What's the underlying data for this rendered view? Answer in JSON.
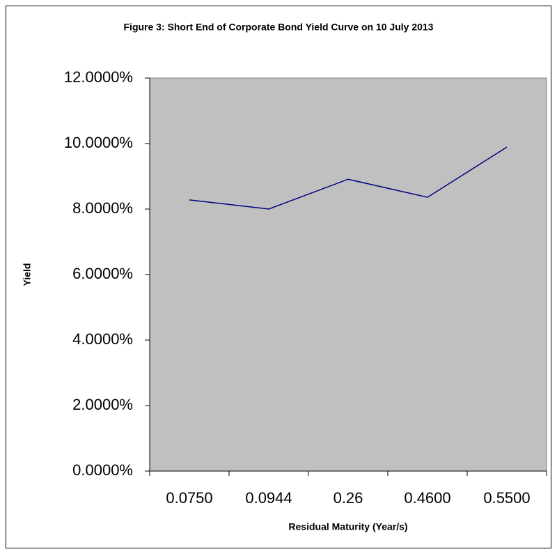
{
  "chart_data": {
    "type": "line",
    "title": "Figure 3: Short End of Corporate Bond Yield Curve on 10 July 2013",
    "x_label": "Residual Maturity (Year/s)",
    "y_label": "Yield",
    "categories": [
      "0.0750",
      "0.0944",
      "0.26",
      "0.4600",
      "0.5500"
    ],
    "values": [
      8.28,
      8.0,
      8.91,
      8.36,
      9.89
    ],
    "color": "#000080",
    "plot_background": "#c0c0c0",
    "ylim": [
      0,
      12
    ],
    "yticks": [
      {
        "value": 0,
        "label": "0.0000%"
      },
      {
        "value": 2,
        "label": "2.0000%"
      },
      {
        "value": 4,
        "label": "4.0000%"
      },
      {
        "value": 6,
        "label": "6.0000%"
      },
      {
        "value": 8,
        "label": "8.0000%"
      },
      {
        "value": 10,
        "label": "10.0000%"
      },
      {
        "value": 12,
        "label": "12.0000%"
      }
    ],
    "grid": false
  }
}
